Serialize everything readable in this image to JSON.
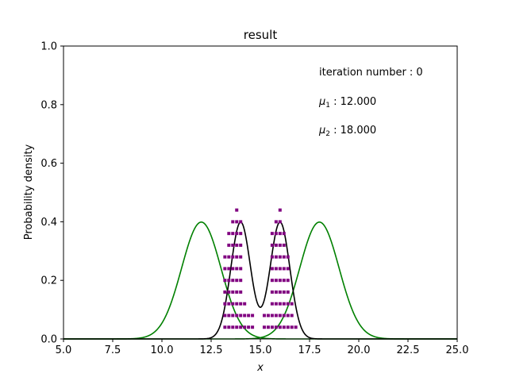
{
  "chart_data": {
    "type": "line",
    "title": "result",
    "xlabel": "x",
    "ylabel": "Probability density",
    "xlim": [
      5.0,
      25.0
    ],
    "ylim": [
      0.0,
      1.0
    ],
    "xticks": [
      "5.0",
      "7.5",
      "10.0",
      "12.5",
      "15.0",
      "17.5",
      "20.0",
      "22.5",
      "25.0"
    ],
    "yticks": [
      "0.0",
      "0.2",
      "0.4",
      "0.6",
      "0.8",
      "1.0"
    ],
    "grid": false,
    "annotations": {
      "iteration": "iteration number : 0",
      "mu1_symbol": "μ",
      "mu1_sub": "1",
      "mu1_value": " : 12.000",
      "mu2_symbol": "μ",
      "mu2_sub": "2",
      "mu2_value": " : 18.000"
    },
    "series": [
      {
        "kind": "gaussian",
        "mean": 12.0,
        "std": 1.0,
        "color": "#008000"
      },
      {
        "kind": "gaussian",
        "mean": 18.0,
        "std": 1.0,
        "color": "#008000"
      },
      {
        "kind": "gaussian-mixture",
        "means": [
          14.0,
          16.0
        ],
        "std": 0.5,
        "weights": [
          0.5,
          0.5
        ],
        "color": "#000000"
      }
    ],
    "scatter": {
      "color": "#800080",
      "marker": "square",
      "columns": [
        {
          "x": 13.2,
          "count": 7
        },
        {
          "x": 13.4,
          "count": 9
        },
        {
          "x": 13.6,
          "count": 10
        },
        {
          "x": 13.8,
          "count": 11
        },
        {
          "x": 14.0,
          "count": 10
        },
        {
          "x": 14.2,
          "count": 3
        },
        {
          "x": 14.4,
          "count": 2
        },
        {
          "x": 14.6,
          "count": 2
        },
        {
          "x": 15.2,
          "count": 2
        },
        {
          "x": 15.4,
          "count": 2
        },
        {
          "x": 15.6,
          "count": 9
        },
        {
          "x": 15.8,
          "count": 10
        },
        {
          "x": 16.0,
          "count": 11
        },
        {
          "x": 16.2,
          "count": 9
        },
        {
          "x": 16.4,
          "count": 7
        },
        {
          "x": 16.6,
          "count": 3
        },
        {
          "x": 16.8,
          "count": 1
        }
      ],
      "y_start": 0.04,
      "y_step": 0.04
    }
  }
}
